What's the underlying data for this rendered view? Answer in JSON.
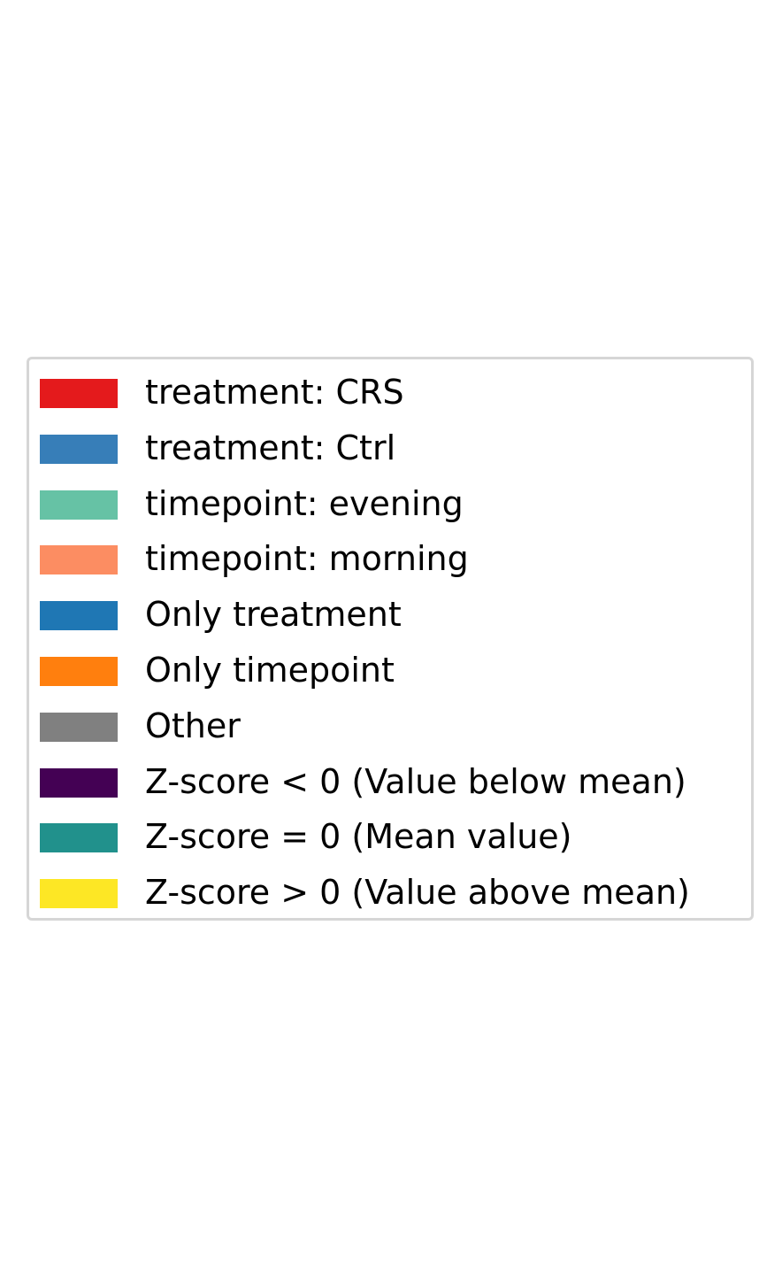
{
  "chart_data": {
    "type": "legend",
    "legend": [
      {
        "label": "treatment: CRS",
        "color": "#e41a1c"
      },
      {
        "label": "treatment: Ctrl",
        "color": "#377eb8"
      },
      {
        "label": "timepoint: evening",
        "color": "#66c2a5"
      },
      {
        "label": "timepoint: morning",
        "color": "#fc8d62"
      },
      {
        "label": "Only treatment",
        "color": "#1f77b4"
      },
      {
        "label": "Only timepoint",
        "color": "#ff7f0e"
      },
      {
        "label": "Other",
        "color": "#808080"
      },
      {
        "label": "Z-score < 0 (Value below mean)",
        "color": "#440154"
      },
      {
        "label": "Z-score = 0 (Mean value)",
        "color": "#21918c"
      },
      {
        "label": "Z-score > 0 (Value above mean)",
        "color": "#fde725"
      }
    ]
  }
}
